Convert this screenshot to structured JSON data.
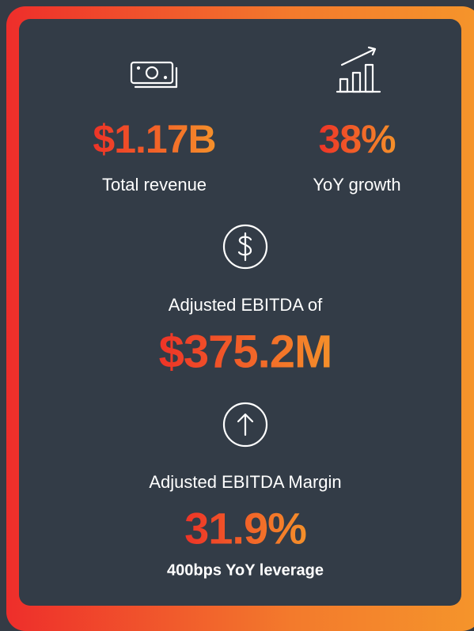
{
  "metrics": [
    {
      "value": "$1.17B",
      "label": "Total revenue"
    },
    {
      "value": "38%",
      "label": "YoY growth"
    },
    {
      "label": "Adjusted EBITDA of",
      "value": "$375.2M"
    },
    {
      "label": "Adjusted EBITDA Margin",
      "value": "31.9%",
      "note": "400bps YoY leverage"
    }
  ]
}
